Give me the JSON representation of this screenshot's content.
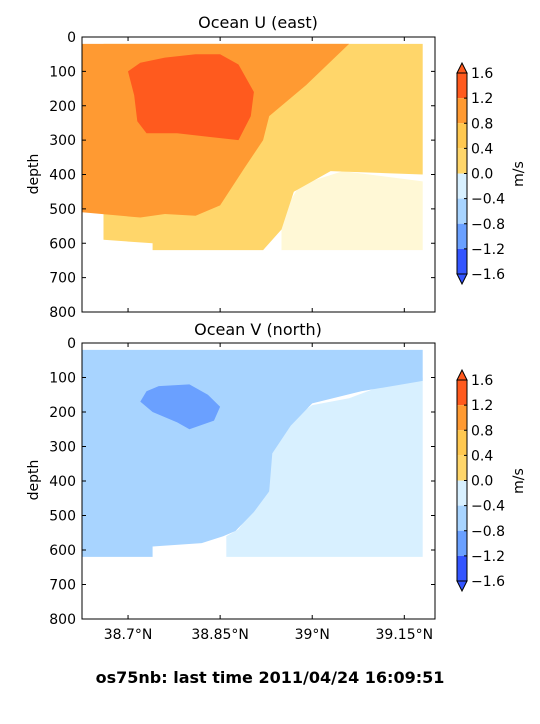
{
  "footer": {
    "caption": "os75nb: last time 2011/04/24 16:09:51"
  },
  "colorbar": {
    "unit": "m/s",
    "ticks": [
      "1.6",
      "1.2",
      "0.8",
      "0.4",
      "0.0",
      "−0.4",
      "−0.8",
      "−1.2",
      "−1.6"
    ],
    "colors_top_to_bottom": [
      "#ff5a1e",
      "#ff9a32",
      "#ffc850",
      "#ffd66a",
      "#fff8d6",
      "#d8f0ff",
      "#a8d4ff",
      "#6aa0ff",
      "#3355ff"
    ]
  },
  "chart_data": [
    {
      "type": "heatmap",
      "title": "Ocean U (east)",
      "xlabel": "",
      "ylabel": "depth",
      "x_ticks": [
        "38.7°N",
        "38.85°N",
        "39°N",
        "39.15°N"
      ],
      "x_tick_values": [
        38.7,
        38.85,
        39.0,
        39.15
      ],
      "xlim": [
        38.625,
        39.2
      ],
      "y_ticks": [
        "0",
        "100",
        "200",
        "300",
        "400",
        "500",
        "600",
        "700",
        "800"
      ],
      "y_tick_values": [
        0,
        100,
        200,
        300,
        400,
        500,
        600,
        700,
        800
      ],
      "ylim": [
        800,
        0
      ],
      "levels": [
        -1.6,
        -1.2,
        -0.8,
        -0.4,
        0.0,
        0.4,
        0.8,
        1.2,
        1.6
      ],
      "regions": [
        {
          "value_range": [
            0.0,
            0.4
          ],
          "color": "#fff8d6",
          "poly": [
            [
              38.95,
              620
            ],
            [
              39.18,
              620
            ],
            [
              39.18,
              420
            ],
            [
              39.05,
              390
            ],
            [
              38.98,
              430
            ],
            [
              38.95,
              520
            ]
          ]
        },
        {
          "value_range": [
            0.4,
            0.8
          ],
          "color": "#ffd66a",
          "poly": [
            [
              38.66,
              20
            ],
            [
              39.18,
              20
            ],
            [
              39.18,
              400
            ],
            [
              39.03,
              390
            ],
            [
              38.97,
              450
            ],
            [
              38.95,
              560
            ],
            [
              38.92,
              620
            ],
            [
              38.74,
              620
            ],
            [
              38.74,
              600
            ],
            [
              38.66,
              590
            ]
          ]
        },
        {
          "value_range": [
            0.8,
            1.2
          ],
          "color": "#ff9a32",
          "poly": [
            [
              38.625,
              20
            ],
            [
              39.06,
              20
            ],
            [
              38.99,
              140
            ],
            [
              38.93,
              230
            ],
            [
              38.92,
              300
            ],
            [
              38.89,
              380
            ],
            [
              38.85,
              490
            ],
            [
              38.81,
              520
            ],
            [
              38.76,
              515
            ],
            [
              38.72,
              525
            ],
            [
              38.625,
              510
            ]
          ]
        },
        {
          "value_range": [
            1.2,
            1.6
          ],
          "color": "#ff5a1e",
          "poly": [
            [
              38.7,
              100
            ],
            [
              38.72,
              75
            ],
            [
              38.76,
              60
            ],
            [
              38.81,
              50
            ],
            [
              38.85,
              50
            ],
            [
              38.88,
              80
            ],
            [
              38.905,
              160
            ],
            [
              38.9,
              230
            ],
            [
              38.88,
              300
            ],
            [
              38.83,
              290
            ],
            [
              38.78,
              280
            ],
            [
              38.73,
              280
            ],
            [
              38.715,
              245
            ],
            [
              38.71,
              170
            ]
          ]
        }
      ]
    },
    {
      "type": "heatmap",
      "title": "Ocean V (north)",
      "xlabel": "",
      "ylabel": "depth",
      "x_ticks": [
        "38.7°N",
        "38.85°N",
        "39°N",
        "39.15°N"
      ],
      "x_tick_values": [
        38.7,
        38.85,
        39.0,
        39.15
      ],
      "xlim": [
        38.625,
        39.2
      ],
      "y_ticks": [
        "0",
        "100",
        "200",
        "300",
        "400",
        "500",
        "600",
        "700",
        "800"
      ],
      "y_tick_values": [
        0,
        100,
        200,
        300,
        400,
        500,
        600,
        700,
        800
      ],
      "ylim": [
        800,
        0
      ],
      "levels": [
        -1.6,
        -1.2,
        -0.8,
        -0.4,
        0.0,
        0.4,
        0.8,
        1.2,
        1.6
      ],
      "regions": [
        {
          "value_range": [
            -0.4,
            0.0
          ],
          "color": "#d8f0ff",
          "poly": [
            [
              38.95,
              620
            ],
            [
              39.18,
              620
            ],
            [
              39.18,
              100
            ],
            [
              39.12,
              120
            ],
            [
              39.06,
              160
            ],
            [
              39.0,
              180
            ],
            [
              38.96,
              230
            ],
            [
              38.93,
              320
            ],
            [
              38.93,
              430
            ],
            [
              38.9,
              490
            ],
            [
              38.88,
              540
            ],
            [
              38.86,
              560
            ],
            [
              38.86,
              620
            ]
          ]
        },
        {
          "value_range": [
            -0.8,
            -0.4
          ],
          "color": "#a8d4ff",
          "poly": [
            [
              38.625,
              20
            ],
            [
              39.18,
              20
            ],
            [
              39.18,
              110
            ],
            [
              39.08,
              140
            ],
            [
              39.0,
              175
            ],
            [
              38.965,
              240
            ],
            [
              38.935,
              320
            ],
            [
              38.93,
              430
            ],
            [
              38.905,
              490
            ],
            [
              38.875,
              545
            ],
            [
              38.855,
              560
            ],
            [
              38.82,
              580
            ],
            [
              38.74,
              590
            ],
            [
              38.74,
              620
            ],
            [
              38.625,
              620
            ]
          ]
        },
        {
          "value_range": [
            -1.2,
            -0.8
          ],
          "color": "#6aa0ff",
          "poly": [
            [
              38.73,
              140
            ],
            [
              38.75,
              125
            ],
            [
              38.8,
              120
            ],
            [
              38.83,
              150
            ],
            [
              38.85,
              185
            ],
            [
              38.84,
              225
            ],
            [
              38.8,
              250
            ],
            [
              38.78,
              230
            ],
            [
              38.74,
              200
            ],
            [
              38.72,
              170
            ]
          ]
        }
      ]
    }
  ]
}
